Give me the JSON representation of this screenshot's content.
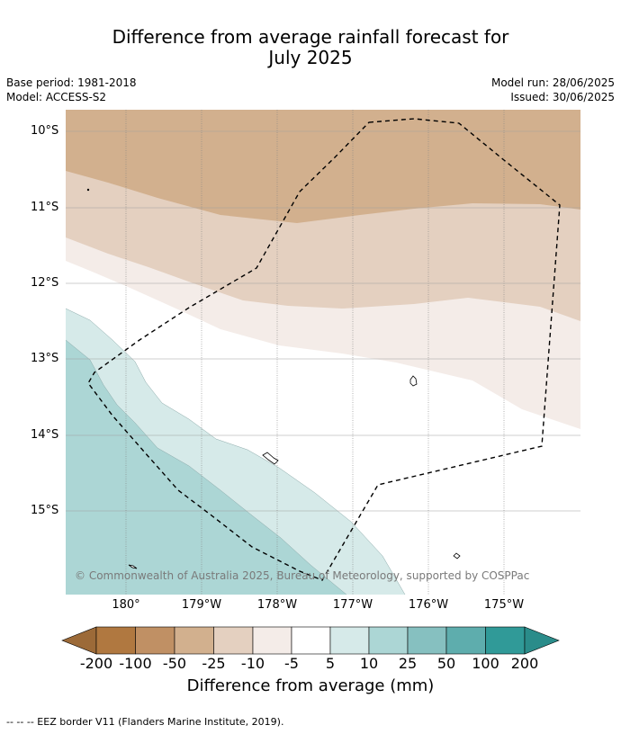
{
  "title": {
    "line1": "Difference from average rainfall forecast for",
    "line2": "July 2025"
  },
  "meta": {
    "base_period": "Base period: 1981-2018",
    "model": "Model: ACCESS-S2",
    "model_run": "Model run: 28/06/2025",
    "issued": "Issued: 30/06/2025"
  },
  "map": {
    "lat_labels": [
      "10°S",
      "11°S",
      "12°S",
      "13°S",
      "14°S",
      "15°S"
    ],
    "lon_labels": [
      "180°",
      "179°W",
      "178°W",
      "177°W",
      "176°W",
      "175°W"
    ],
    "copyright": "© Commonwealth of Australia 2025, Bureau of Meteorology, supported by COSPPac"
  },
  "colorbar": {
    "ticks": [
      "-200",
      "-100",
      "-50",
      "-25",
      "-10",
      "-5",
      "5",
      "10",
      "25",
      "50",
      "100",
      "200"
    ],
    "colors": [
      "#9c6a38",
      "#b07840",
      "#c09064",
      "#d2b08e",
      "#e4d0c0",
      "#f4ece8",
      "#ffffff",
      "#d6eae9",
      "#acd6d5",
      "#86c0c0",
      "#5eadad",
      "#309a98",
      "#2a8c8a"
    ],
    "title": "Difference from average (mm)"
  },
  "footnote": "--  --  -- EEZ border V11 (Flanders Marine Institute, 2019)."
}
